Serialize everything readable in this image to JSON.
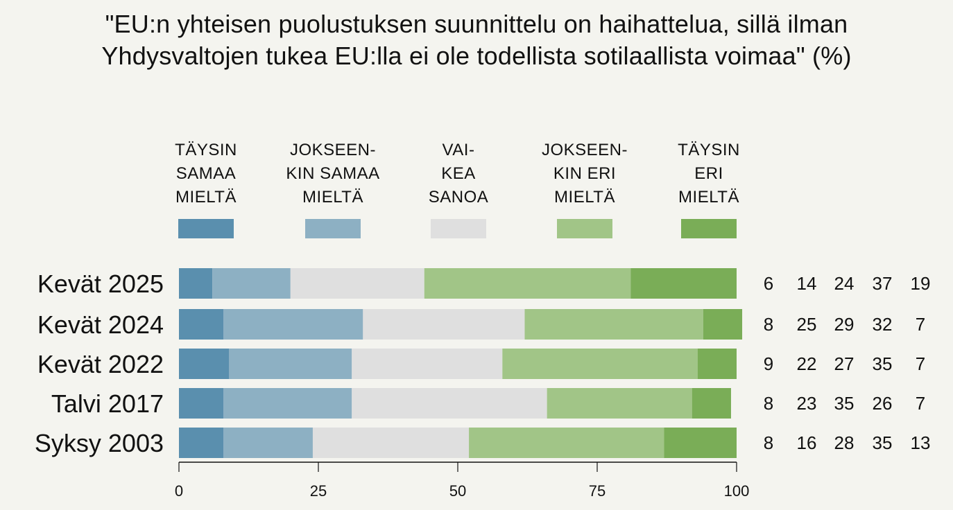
{
  "chart_data": {
    "type": "bar",
    "orientation": "horizontal",
    "stacked": true,
    "title_lines": [
      "\"EU:n yhteisen puolustuksen suunnittelu on haihattelua, sillä ilman",
      "Yhdysvaltojen tukea EU:lla ei ole todellista sotilaallista voimaa\" (%)"
    ],
    "categories": [
      "Kevät 2025",
      "Kevät 2024",
      "Kevät 2022",
      "Talvi 2017",
      "Syksy 2003"
    ],
    "series": [
      {
        "name": "TÄYSIN\nSAMAA\nMIELTÄ",
        "color": "#5a8fae",
        "values": [
          6,
          8,
          9,
          8,
          8
        ]
      },
      {
        "name": "JOKSEEN-\nKIN SAMAA\nMIELTÄ",
        "color": "#8db0c3",
        "values": [
          14,
          25,
          22,
          23,
          16
        ]
      },
      {
        "name": "VAI-\nKEA\nSANOA",
        "color": "#dfdfdf",
        "values": [
          24,
          29,
          27,
          35,
          28
        ]
      },
      {
        "name": "JOKSEEN-\nKIN ERI\nMIELTÄ",
        "color": "#a1c587",
        "values": [
          37,
          32,
          35,
          26,
          35
        ]
      },
      {
        "name": "TÄYSIN\nERI\nMIELTÄ",
        "color": "#7aad57",
        "values": [
          19,
          7,
          7,
          7,
          13
        ]
      }
    ],
    "xlim": [
      0,
      100
    ],
    "xticks": [
      "0",
      "25",
      "50",
      "75",
      "100"
    ],
    "xlabel": "",
    "ylabel": "",
    "grid": false,
    "legend_position": "top"
  }
}
